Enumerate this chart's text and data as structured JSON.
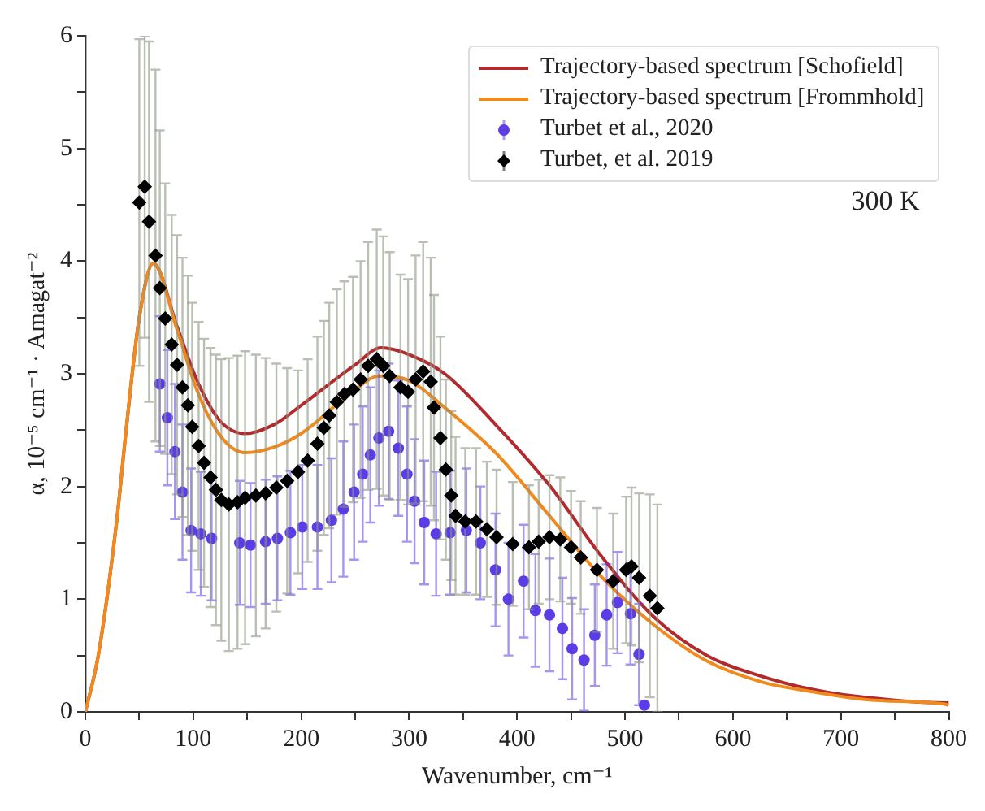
{
  "chart_data": {
    "type": "line",
    "xlabel": "Wavenumber, cm⁻¹",
    "ylabel": "α, 10⁻⁵ cm⁻¹ · Amagat⁻²",
    "annotations": [
      "300 K"
    ],
    "xlim": [
      0,
      800
    ],
    "xticks": [
      0,
      {
        "value": 50,
        "label": null
      },
      100,
      {
        "value": 150,
        "label": null
      },
      200,
      {
        "value": 250,
        "label": null
      },
      300,
      {
        "value": 350,
        "label": null
      },
      400,
      {
        "value": 450,
        "label": null
      },
      500,
      {
        "value": 550,
        "label": null
      },
      600,
      {
        "value": 650,
        "label": null
      },
      700,
      {
        "value": 750,
        "label": null
      },
      800
    ],
    "ylim": [
      0,
      6
    ],
    "yticks": [
      0,
      {
        "value": 0.5,
        "label": null
      },
      1,
      {
        "value": 1.5,
        "label": null
      },
      2,
      {
        "value": 2.5,
        "label": null
      },
      3,
      {
        "value": 3.5,
        "label": null
      },
      4,
      {
        "value": 4.5,
        "label": null
      },
      5,
      {
        "value": 5.5,
        "label": null
      },
      6
    ],
    "grid": false,
    "legend": "top right",
    "series": [
      {
        "name": "Trajectory-based spectrum [Schofield]",
        "color": "#b22a2e",
        "marker": "none",
        "line_style": "solid",
        "x": [
          0,
          12,
          29,
          38,
          50,
          63,
          85,
          104,
          125,
          148,
          175,
          200,
          250,
          274,
          300,
          333,
          381,
          430,
          479,
          527,
          576,
          625,
          673,
          722,
          795,
          800
        ],
        "values": [
          0,
          0.5,
          1.69,
          2.52,
          3.5,
          3.98,
          3.42,
          2.93,
          2.58,
          2.47,
          2.55,
          2.72,
          3.08,
          3.23,
          3.17,
          3.0,
          2.54,
          2.01,
          1.37,
          0.84,
          0.5,
          0.32,
          0.2,
          0.13,
          0.08,
          0.08
        ]
      },
      {
        "name": "Trajectory-based spectrum [Frommhold]",
        "color": "#f08a1c",
        "marker": "none",
        "line_style": "solid",
        "x": [
          0,
          12,
          29,
          38,
          50,
          63,
          85,
          104,
          125,
          148,
          175,
          200,
          250,
          272,
          300,
          333,
          381,
          430,
          479,
          527,
          576,
          625,
          673,
          722,
          795,
          800
        ],
        "values": [
          0,
          0.5,
          1.69,
          2.52,
          3.5,
          3.98,
          3.39,
          2.84,
          2.45,
          2.3,
          2.35,
          2.47,
          2.86,
          2.98,
          2.94,
          2.7,
          2.29,
          1.74,
          1.19,
          0.77,
          0.45,
          0.27,
          0.18,
          0.11,
          0.07,
          0.06
        ]
      },
      {
        "name": "Turbet et al., 2020",
        "type": "scatter",
        "color": "#5b3ce6",
        "marker": "circle",
        "x": [
          69,
          76,
          83,
          90,
          98,
          107,
          117,
          143,
          153,
          167,
          178,
          190,
          201,
          215,
          228,
          239,
          249,
          257,
          264,
          272,
          281,
          290,
          298,
          305,
          314,
          325,
          338,
          353,
          366,
          380,
          392,
          406,
          417,
          430,
          442,
          451,
          462,
          472,
          483,
          493,
          505,
          513,
          518
        ],
        "values": [
          2.91,
          2.61,
          2.31,
          1.95,
          1.61,
          1.58,
          1.54,
          1.5,
          1.48,
          1.51,
          1.54,
          1.59,
          1.64,
          1.64,
          1.7,
          1.8,
          1.95,
          2.11,
          2.28,
          2.43,
          2.49,
          2.34,
          2.11,
          1.87,
          1.68,
          1.58,
          1.59,
          1.61,
          1.5,
          1.26,
          1.0,
          1.16,
          0.9,
          0.86,
          0.74,
          0.56,
          0.46,
          0.68,
          0.86,
          0.97,
          0.87,
          0.51,
          0.06
        ],
        "errors": [
          0.6,
          0.6,
          0.6,
          0.6,
          0.55,
          0.55,
          0.55,
          0.55,
          0.55,
          0.55,
          0.55,
          0.55,
          0.55,
          0.55,
          0.55,
          0.6,
          0.6,
          0.6,
          0.6,
          0.6,
          0.6,
          0.6,
          0.6,
          0.55,
          0.55,
          0.55,
          0.55,
          0.55,
          0.5,
          0.5,
          0.5,
          0.5,
          0.5,
          0.5,
          0.45,
          0.45,
          0.45,
          0.45,
          0.45,
          0.45,
          0.45,
          0.45,
          null
        ]
      },
      {
        "name": "Turbet, et al. 2019",
        "type": "scatter",
        "color": "#000000",
        "marker": "diamond",
        "x": [
          50,
          55,
          59,
          65,
          69,
          74,
          80,
          85,
          90,
          95,
          99,
          105,
          110,
          116,
          121,
          126,
          133,
          141,
          148,
          158,
          167,
          177,
          187,
          197,
          206,
          215,
          221,
          226,
          233,
          240,
          248,
          255,
          262,
          270,
          276,
          282,
          292,
          299,
          306,
          313,
          320,
          323,
          329,
          334,
          339,
          343,
          352,
          362,
          372,
          381,
          396,
          411,
          420,
          430,
          440,
          450,
          459,
          474,
          489,
          501,
          506,
          513,
          523,
          530
        ],
        "values": [
          4.52,
          4.66,
          4.35,
          4.05,
          3.76,
          3.49,
          3.26,
          3.08,
          2.88,
          2.72,
          2.53,
          2.36,
          2.21,
          2.08,
          1.97,
          1.88,
          1.84,
          1.86,
          1.9,
          1.92,
          1.94,
          1.99,
          2.05,
          2.13,
          2.23,
          2.38,
          2.52,
          2.63,
          2.75,
          2.82,
          2.86,
          2.95,
          3.07,
          3.13,
          3.07,
          2.98,
          2.88,
          2.84,
          2.95,
          3.02,
          2.93,
          2.7,
          2.43,
          2.15,
          1.92,
          1.74,
          1.69,
          1.69,
          1.62,
          1.55,
          1.49,
          1.46,
          1.51,
          1.55,
          1.53,
          1.46,
          1.37,
          1.26,
          1.16,
          1.26,
          1.29,
          1.19,
          1.03,
          0.92
        ],
        "errors": [
          1.45,
          1.34,
          1.6,
          1.65,
          1.4,
          1.2,
          1.15,
          1.15,
          1.15,
          1.15,
          1.1,
          1.1,
          1.1,
          1.15,
          1.2,
          1.25,
          1.3,
          1.3,
          1.3,
          1.25,
          1.2,
          1.1,
          1.0,
          0.9,
          0.9,
          0.95,
          0.95,
          1.0,
          1.0,
          1.0,
          1.0,
          1.05,
          1.1,
          1.15,
          1.15,
          1.1,
          1.0,
          1.0,
          1.1,
          1.15,
          1.1,
          1.0,
          0.9,
          0.8,
          0.75,
          0.7,
          0.65,
          0.65,
          0.6,
          0.6,
          0.55,
          0.55,
          0.55,
          0.55,
          0.55,
          0.5,
          0.5,
          0.55,
          0.6,
          0.65,
          0.7,
          0.75,
          0.9,
          0.92
        ]
      }
    ]
  }
}
